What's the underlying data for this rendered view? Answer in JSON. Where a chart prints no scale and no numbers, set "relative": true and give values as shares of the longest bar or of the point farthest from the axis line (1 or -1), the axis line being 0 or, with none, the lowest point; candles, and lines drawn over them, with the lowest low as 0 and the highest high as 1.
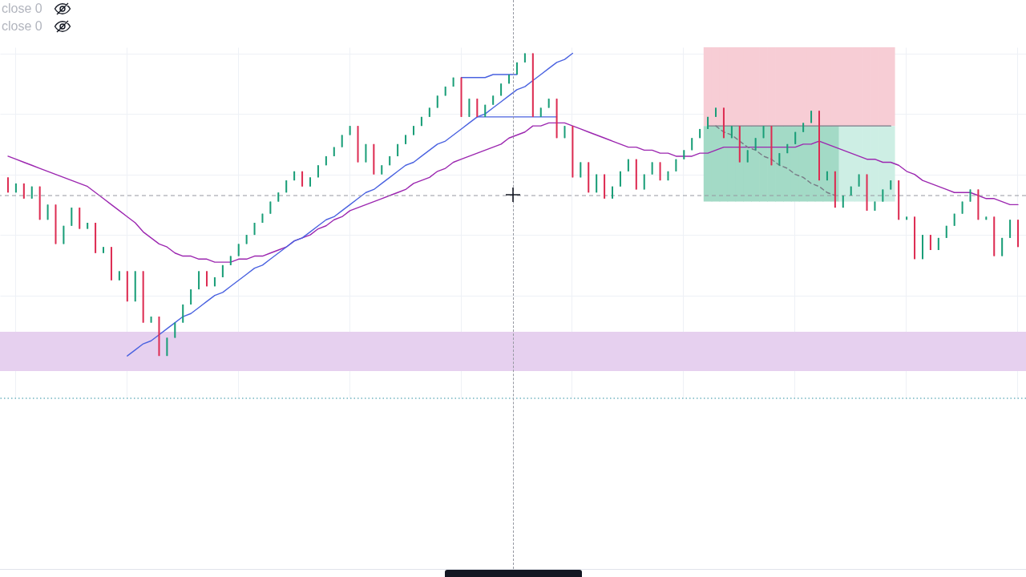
{
  "chart_data": {
    "type": "candlestick",
    "relative": true,
    "grid": true,
    "tick_labels": false,
    "annotations": [
      "close 0",
      "close 0"
    ],
    "categories": [
      null,
      null,
      null,
      null,
      null,
      null,
      null,
      null,
      null,
      null,
      null,
      null,
      null,
      null,
      null,
      null,
      null,
      null,
      null,
      null,
      null,
      null,
      null,
      null,
      null,
      null,
      null,
      null,
      null,
      null,
      null,
      null,
      null,
      null,
      null,
      null,
      null,
      null,
      null,
      null,
      null,
      null,
      null,
      null,
      null,
      null,
      null,
      null,
      null,
      null,
      null,
      null,
      null,
      null,
      null,
      null,
      null,
      null,
      null,
      null,
      null,
      null,
      null,
      null,
      null,
      null,
      null,
      null,
      null,
      null,
      null,
      null,
      null,
      null,
      null,
      null,
      null,
      null,
      null,
      null,
      null,
      null,
      null,
      null,
      null,
      null,
      null,
      null,
      null,
      null,
      null,
      null,
      null,
      null,
      null,
      null,
      null,
      null,
      null,
      null,
      null,
      null,
      null,
      null,
      null,
      null,
      null,
      null,
      null,
      null,
      null,
      null,
      null,
      null,
      null,
      null,
      null,
      null,
      null,
      null,
      null,
      null,
      null,
      null,
      null,
      null,
      null,
      null
    ],
    "ohlc": [
      [
        0.59,
        0.59,
        0.54,
        0.54
      ],
      [
        0.54,
        0.57,
        0.54,
        0.57
      ],
      [
        0.57,
        0.57,
        0.52,
        0.52
      ],
      [
        0.52,
        0.56,
        0.52,
        0.56
      ],
      [
        0.56,
        0.56,
        0.45,
        0.45
      ],
      [
        0.45,
        0.5,
        0.45,
        0.5
      ],
      [
        0.5,
        0.5,
        0.37,
        0.37
      ],
      [
        0.37,
        0.43,
        0.37,
        0.43
      ],
      [
        0.43,
        0.49,
        0.43,
        0.49
      ],
      [
        0.49,
        0.49,
        0.42,
        0.42
      ],
      [
        0.42,
        0.44,
        0.42,
        0.44
      ],
      [
        0.44,
        0.44,
        0.34,
        0.34
      ],
      [
        0.34,
        0.36,
        0.34,
        0.36
      ],
      [
        0.36,
        0.36,
        0.25,
        0.25
      ],
      [
        0.25,
        0.28,
        0.25,
        0.28
      ],
      [
        0.28,
        0.28,
        0.18,
        0.18
      ],
      [
        0.18,
        0.28,
        0.18,
        0.28
      ],
      [
        0.28,
        0.28,
        0.11,
        0.11
      ],
      [
        0.11,
        0.13,
        0.11,
        0.13
      ],
      [
        0.13,
        0.13,
        0,
        0
      ],
      [
        0,
        0.06,
        0,
        0.06
      ],
      [
        0.06,
        0.11,
        0.06,
        0.11
      ],
      [
        0.11,
        0.17,
        0.11,
        0.17
      ],
      [
        0.17,
        0.22,
        0.17,
        0.22
      ],
      [
        0.22,
        0.28,
        0.22,
        0.28
      ],
      [
        0.28,
        0.28,
        0.23,
        0.23
      ],
      [
        0.23,
        0.26,
        0.23,
        0.26
      ],
      [
        0.26,
        0.3,
        0.26,
        0.3
      ],
      [
        0.3,
        0.33,
        0.3,
        0.33
      ],
      [
        0.33,
        0.37,
        0.33,
        0.37
      ],
      [
        0.37,
        0.4,
        0.37,
        0.4
      ],
      [
        0.4,
        0.44,
        0.4,
        0.44
      ],
      [
        0.44,
        0.47,
        0.44,
        0.47
      ],
      [
        0.47,
        0.51,
        0.47,
        0.51
      ],
      [
        0.51,
        0.54,
        0.51,
        0.54
      ],
      [
        0.54,
        0.58,
        0.54,
        0.58
      ],
      [
        0.58,
        0.61,
        0.58,
        0.61
      ],
      [
        0.61,
        0.61,
        0.56,
        0.56
      ],
      [
        0.56,
        0.59,
        0.56,
        0.59
      ],
      [
        0.59,
        0.63,
        0.59,
        0.63
      ],
      [
        0.63,
        0.66,
        0.63,
        0.66
      ],
      [
        0.66,
        0.69,
        0.66,
        0.69
      ],
      [
        0.69,
        0.73,
        0.69,
        0.73
      ],
      [
        0.73,
        0.76,
        0.73,
        0.76
      ],
      [
        0.76,
        0.76,
        0.64,
        0.64
      ],
      [
        0.64,
        0.7,
        0.64,
        0.7
      ],
      [
        0.7,
        0.7,
        0.6,
        0.6
      ],
      [
        0.6,
        0.63,
        0.6,
        0.63
      ],
      [
        0.63,
        0.66,
        0.63,
        0.66
      ],
      [
        0.66,
        0.7,
        0.66,
        0.7
      ],
      [
        0.7,
        0.73,
        0.7,
        0.73
      ],
      [
        0.73,
        0.76,
        0.73,
        0.76
      ],
      [
        0.76,
        0.79,
        0.76,
        0.79
      ],
      [
        0.79,
        0.82,
        0.79,
        0.82
      ],
      [
        0.82,
        0.86,
        0.82,
        0.86
      ],
      [
        0.86,
        0.89,
        0.86,
        0.89
      ],
      [
        0.89,
        0.92,
        0.89,
        0.92
      ],
      [
        0.92,
        0.92,
        0.79,
        0.79
      ],
      [
        0.79,
        0.85,
        0.79,
        0.85
      ],
      [
        0.85,
        0.85,
        0.79,
        0.79
      ],
      [
        0.79,
        0.83,
        0.79,
        0.83
      ],
      [
        0.83,
        0.86,
        0.83,
        0.86
      ],
      [
        0.86,
        0.9,
        0.86,
        0.9
      ],
      [
        0.9,
        0.93,
        0.9,
        0.93
      ],
      [
        0.93,
        0.97,
        0.93,
        0.97
      ],
      [
        0.97,
        1,
        0.97,
        1
      ],
      [
        1,
        1,
        0.79,
        0.79
      ],
      [
        0.79,
        0.82,
        0.79,
        0.82
      ],
      [
        0.82,
        0.85,
        0.82,
        0.85
      ],
      [
        0.85,
        0.85,
        0.72,
        0.72
      ],
      [
        0.72,
        0.76,
        0.72,
        0.76
      ],
      [
        0.76,
        0.76,
        0.59,
        0.59
      ],
      [
        0.59,
        0.64,
        0.59,
        0.64
      ],
      [
        0.64,
        0.64,
        0.54,
        0.54
      ],
      [
        0.54,
        0.6,
        0.54,
        0.6
      ],
      [
        0.6,
        0.6,
        0.52,
        0.52
      ],
      [
        0.52,
        0.56,
        0.52,
        0.56
      ],
      [
        0.56,
        0.61,
        0.56,
        0.61
      ],
      [
        0.61,
        0.65,
        0.61,
        0.65
      ],
      [
        0.65,
        0.65,
        0.55,
        0.55
      ],
      [
        0.55,
        0.6,
        0.55,
        0.6
      ],
      [
        0.6,
        0.64,
        0.6,
        0.64
      ],
      [
        0.64,
        0.64,
        0.58,
        0.58
      ],
      [
        0.58,
        0.61,
        0.58,
        0.61
      ],
      [
        0.61,
        0.65,
        0.61,
        0.65
      ],
      [
        0.65,
        0.68,
        0.65,
        0.68
      ],
      [
        0.68,
        0.72,
        0.68,
        0.72
      ],
      [
        0.72,
        0.75,
        0.72,
        0.75
      ],
      [
        0.75,
        0.79,
        0.75,
        0.79
      ],
      [
        0.79,
        0.82,
        0.79,
        0.82
      ],
      [
        0.82,
        0.82,
        0.72,
        0.72
      ],
      [
        0.72,
        0.76,
        0.72,
        0.76
      ],
      [
        0.76,
        0.76,
        0.64,
        0.64
      ],
      [
        0.64,
        0.68,
        0.64,
        0.68
      ],
      [
        0.68,
        0.72,
        0.68,
        0.72
      ],
      [
        0.72,
        0.76,
        0.72,
        0.76
      ],
      [
        0.76,
        0.76,
        0.63,
        0.63
      ],
      [
        0.63,
        0.67,
        0.63,
        0.67
      ],
      [
        0.67,
        0.7,
        0.67,
        0.7
      ],
      [
        0.7,
        0.74,
        0.7,
        0.74
      ],
      [
        0.74,
        0.77,
        0.74,
        0.77
      ],
      [
        0.77,
        0.81,
        0.77,
        0.81
      ],
      [
        0.81,
        0.81,
        0.58,
        0.58
      ],
      [
        0.58,
        0.61,
        0.58,
        0.61
      ],
      [
        0.61,
        0.61,
        0.49,
        0.49
      ],
      [
        0.49,
        0.53,
        0.49,
        0.53
      ],
      [
        0.53,
        0.56,
        0.53,
        0.56
      ],
      [
        0.56,
        0.6,
        0.56,
        0.6
      ],
      [
        0.6,
        0.6,
        0.48,
        0.48
      ],
      [
        0.48,
        0.51,
        0.48,
        0.51
      ],
      [
        0.51,
        0.55,
        0.51,
        0.55
      ],
      [
        0.55,
        0.58,
        0.55,
        0.58
      ],
      [
        0.58,
        0.58,
        0.45,
        0.45
      ],
      [
        0.45,
        0.46,
        0.45,
        0.46
      ],
      [
        0.46,
        0.46,
        0.32,
        0.32
      ],
      [
        0.32,
        0.4,
        0.32,
        0.4
      ],
      [
        0.4,
        0.4,
        0.35,
        0.35
      ],
      [
        0.35,
        0.39,
        0.35,
        0.39
      ],
      [
        0.39,
        0.43,
        0.39,
        0.43
      ],
      [
        0.43,
        0.47,
        0.43,
        0.47
      ],
      [
        0.47,
        0.51,
        0.47,
        0.51
      ],
      [
        0.51,
        0.55,
        0.51,
        0.55
      ],
      [
        0.55,
        0.55,
        0.45,
        0.45
      ],
      [
        0.45,
        0.46,
        0.45,
        0.46
      ],
      [
        0.46,
        0.46,
        0.33,
        0.33
      ],
      [
        0.33,
        0.39,
        0.33,
        0.39
      ],
      [
        0.39,
        0.45,
        0.39,
        0.45
      ],
      [
        0.45,
        0.45,
        0.36,
        0.36
      ]
    ],
    "colors": [
      "#dd2c52",
      "#1a9e78",
      "#dd2c52",
      "#1a9e78",
      "#dd2c52",
      "#1a9e78",
      "#dd2c52",
      "#1a9e78",
      "#1a9e78",
      "#dd2c52",
      "#1a9e78",
      "#dd2c52",
      "#1a9e78",
      "#dd2c52",
      "#1a9e78",
      "#dd2c52",
      "#1a9e78",
      "#dd2c52",
      "#1a9e78",
      "#dd2c52",
      "#1a9e78",
      "#1a9e78",
      "#1a9e78",
      "#1a9e78",
      "#1a9e78",
      "#dd2c52",
      "#1a9e78",
      "#1a9e78",
      "#1a9e78",
      "#1a9e78",
      "#1a9e78",
      "#1a9e78",
      "#1a9e78",
      "#1a9e78",
      "#1a9e78",
      "#1a9e78",
      "#1a9e78",
      "#dd2c52",
      "#1a9e78",
      "#1a9e78",
      "#1a9e78",
      "#1a9e78",
      "#1a9e78",
      "#1a9e78",
      "#dd2c52",
      "#1a9e78",
      "#dd2c52",
      "#1a9e78",
      "#1a9e78",
      "#1a9e78",
      "#1a9e78",
      "#1a9e78",
      "#1a9e78",
      "#1a9e78",
      "#1a9e78",
      "#1a9e78",
      "#1a9e78",
      "#dd2c52",
      "#1a9e78",
      "#dd2c52",
      "#1a9e78",
      "#1a9e78",
      "#1a9e78",
      "#1a9e78",
      "#1a9e78",
      "#1a9e78",
      "#dd2c52",
      "#1a9e78",
      "#1a9e78",
      "#dd2c52",
      "#1a9e78",
      "#dd2c52",
      "#1a9e78",
      "#dd2c52",
      "#1a9e78",
      "#dd2c52",
      "#1a9e78",
      "#1a9e78",
      "#1a9e78",
      "#dd2c52",
      "#1a9e78",
      "#1a9e78",
      "#dd2c52",
      "#1a9e78",
      "#1a9e78",
      "#1a9e78",
      "#1a9e78",
      "#1a9e78",
      "#1a9e78",
      "#1a9e78",
      "#dd2c52",
      "#1a9e78",
      "#dd2c52",
      "#1a9e78",
      "#1a9e78",
      "#1a9e78",
      "#dd2c52",
      "#1a9e78",
      "#1a9e78",
      "#1a9e78",
      "#1a9e78",
      "#1a9e78",
      "#dd2c52",
      "#1a9e78",
      "#dd2c52",
      "#1a9e78",
      "#1a9e78",
      "#1a9e78",
      "#dd2c52",
      "#1a9e78",
      "#1a9e78",
      "#1a9e78",
      "#dd2c52",
      "#1a9e78",
      "#dd2c52",
      "#1a9e78",
      "#dd2c52",
      "#1a9e78",
      "#1a9e78",
      "#1a9e78",
      "#1a9e78",
      "#1a9e78",
      "#dd2c52",
      "#1a9e78",
      "#dd2c52",
      "#1a9e78",
      "#1a9e78",
      "#dd2c52"
    ],
    "series": [
      {
        "type": "line",
        "color": "#9c27b0",
        "values": [
          0.66,
          0.65,
          0.64,
          0.63,
          0.62,
          0.61,
          0.6,
          0.59,
          0.58,
          0.57,
          0.56,
          0.54,
          0.52,
          0.5,
          0.48,
          0.46,
          0.44,
          0.41,
          0.39,
          0.37,
          0.36,
          0.34,
          0.33,
          0.33,
          0.32,
          0.32,
          0.31,
          0.31,
          0.31,
          0.32,
          0.32,
          0.33,
          0.33,
          0.34,
          0.35,
          0.36,
          0.38,
          0.39,
          0.4,
          0.42,
          0.43,
          0.45,
          0.46,
          0.48,
          0.49,
          0.5,
          0.51,
          0.52,
          0.53,
          0.54,
          0.55,
          0.57,
          0.58,
          0.59,
          0.61,
          0.62,
          0.64,
          0.65,
          0.66,
          0.67,
          0.68,
          0.69,
          0.7,
          0.72,
          0.73,
          0.74,
          0.76,
          0.76,
          0.77,
          0.77,
          0.77,
          0.76,
          0.75,
          0.74,
          0.73,
          0.72,
          0.71,
          0.7,
          0.69,
          0.69,
          0.68,
          0.68,
          0.67,
          0.67,
          0.66,
          0.66,
          0.66,
          0.67,
          0.67,
          0.68,
          0.69,
          0.69,
          0.69,
          0.69,
          0.69,
          0.69,
          0.69,
          0.69,
          0.69,
          0.69,
          0.7,
          0.7,
          0.71,
          0.7,
          0.69,
          0.68,
          0.67,
          0.66,
          0.65,
          0.65,
          0.64,
          0.64,
          0.63,
          0.61,
          0.6,
          0.58,
          0.57,
          0.56,
          0.55,
          0.54,
          0.54,
          0.54,
          0.53,
          0.52,
          0.52,
          0.51,
          0.5,
          0.5
        ]
      },
      {
        "type": "line",
        "color": "#4a62e0",
        "values": [
          null,
          null,
          null,
          null,
          null,
          null,
          null,
          null,
          null,
          null,
          null,
          null,
          null,
          null,
          null,
          0,
          0.02,
          0.04,
          0.05,
          0.07,
          0.09,
          0.11,
          0.13,
          0.14,
          0.16,
          0.18,
          0.2,
          0.21,
          0.23,
          0.25,
          0.27,
          0.29,
          0.3,
          0.32,
          0.34,
          0.36,
          0.38,
          0.39,
          0.41,
          0.43,
          0.45,
          0.46,
          0.48,
          0.5,
          0.52,
          0.54,
          0.55,
          0.57,
          0.59,
          0.61,
          0.63,
          0.64,
          0.66,
          0.68,
          0.7,
          0.71,
          0.73,
          0.75,
          0.77,
          0.79,
          0.8,
          0.82,
          0.84,
          0.86,
          0.88,
          0.89,
          0.91,
          0.93,
          0.95,
          0.97,
          0.98,
          1,
          null,
          null,
          null,
          null,
          null,
          null,
          null,
          null,
          null,
          null,
          null,
          null,
          null,
          null,
          null,
          null,
          null,
          null,
          null,
          null,
          null,
          null,
          null,
          null,
          null,
          null,
          null,
          null,
          null,
          null,
          null,
          null,
          null,
          null,
          null,
          null,
          null,
          null,
          null,
          null,
          null,
          null,
          null,
          null,
          null,
          null,
          null,
          null,
          null,
          null,
          null,
          null,
          null,
          null,
          null,
          null
        ]
      },
      {
        "type": "line",
        "color": "#4a62e0",
        "values": [
          null,
          null,
          null,
          null,
          null,
          null,
          null,
          null,
          null,
          null,
          null,
          null,
          null,
          null,
          null,
          null,
          null,
          null,
          null,
          null,
          null,
          null,
          null,
          null,
          null,
          null,
          null,
          null,
          null,
          null,
          null,
          null,
          null,
          null,
          null,
          null,
          null,
          null,
          null,
          null,
          null,
          null,
          null,
          null,
          null,
          null,
          null,
          null,
          null,
          null,
          null,
          null,
          null,
          null,
          null,
          null,
          null,
          0.92,
          0.92,
          0.92,
          0.92,
          0.93,
          0.93,
          0.93,
          0.93,
          null,
          null,
          null,
          null,
          null,
          null,
          null,
          null,
          null,
          null,
          null,
          null,
          null,
          null,
          null,
          null,
          null,
          null,
          null,
          null,
          null,
          null,
          null,
          null,
          null,
          null,
          null,
          null,
          null,
          null,
          null,
          null,
          null,
          null,
          null,
          null,
          null,
          null,
          null,
          null,
          null,
          null,
          null,
          null,
          null,
          null,
          null,
          null,
          null,
          null,
          null,
          null,
          null,
          null,
          null,
          null,
          null,
          null,
          null,
          null,
          null,
          null,
          null
        ]
      },
      {
        "type": "line",
        "color": "#4a62e0",
        "values": [
          null,
          null,
          null,
          null,
          null,
          null,
          null,
          null,
          null,
          null,
          null,
          null,
          null,
          null,
          null,
          null,
          null,
          null,
          null,
          null,
          null,
          null,
          null,
          null,
          null,
          null,
          null,
          null,
          null,
          null,
          null,
          null,
          null,
          null,
          null,
          null,
          null,
          null,
          null,
          null,
          null,
          null,
          null,
          null,
          null,
          null,
          null,
          null,
          null,
          null,
          null,
          null,
          null,
          null,
          null,
          null,
          null,
          null,
          null,
          0.79,
          0.79,
          0.79,
          0.79,
          0.79,
          0.79,
          0.79,
          0.79,
          0.79,
          0.79,
          0.79,
          null,
          null,
          null,
          null,
          null,
          null,
          null,
          null,
          null,
          null,
          null,
          null,
          null,
          null,
          null,
          null,
          null,
          null,
          null,
          null,
          null,
          null,
          null,
          null,
          null,
          null,
          null,
          null,
          null,
          null,
          null,
          null,
          null,
          null,
          null,
          null,
          null,
          null,
          null,
          null,
          null,
          null,
          null,
          null,
          null,
          null,
          null,
          null,
          null,
          null,
          null,
          null,
          null,
          null,
          null,
          null,
          null,
          null
        ]
      },
      {
        "type": "bar",
        "color": "#f7cdd5",
        "values": [
          null,
          null,
          null,
          null,
          null,
          null,
          null,
          null,
          null,
          null,
          null,
          null,
          null,
          null,
          null,
          null,
          null,
          null,
          null,
          null,
          null,
          null,
          null,
          null,
          null,
          null,
          null,
          null,
          null,
          null,
          null,
          null,
          null,
          null,
          null,
          null,
          null,
          null,
          null,
          null,
          null,
          null,
          null,
          null,
          null,
          null,
          null,
          null,
          null,
          null,
          null,
          null,
          null,
          null,
          null,
          null,
          null,
          null,
          null,
          null,
          null,
          null,
          null,
          null,
          null,
          null,
          null,
          null,
          null,
          null,
          null,
          null,
          null,
          null,
          null,
          null,
          null,
          null,
          null,
          null,
          null,
          null,
          null,
          null,
          null,
          null,
          null,
          null,
          0.26,
          0.26,
          0.26,
          0.26,
          0.26,
          0.26,
          0.26,
          0.26,
          0.26,
          0.26,
          0.26,
          0.26,
          0.26,
          0.26,
          0.26,
          0.26,
          0.26,
          0.26,
          0.26,
          0.26,
          0.26,
          0.26,
          0.26,
          0.26,
          null,
          null,
          null,
          null,
          null,
          null,
          null,
          null,
          null,
          null,
          null,
          null,
          null,
          null,
          null,
          null
        ],
        "base": [
          null,
          null,
          null,
          null,
          null,
          null,
          null,
          null,
          null,
          null,
          null,
          null,
          null,
          null,
          null,
          null,
          null,
          null,
          null,
          null,
          null,
          null,
          null,
          null,
          null,
          null,
          null,
          null,
          null,
          null,
          null,
          null,
          null,
          null,
          null,
          null,
          null,
          null,
          null,
          null,
          null,
          null,
          null,
          null,
          null,
          null,
          null,
          null,
          null,
          null,
          null,
          null,
          null,
          null,
          null,
          null,
          null,
          null,
          null,
          null,
          null,
          null,
          null,
          null,
          null,
          null,
          null,
          null,
          null,
          null,
          null,
          null,
          null,
          null,
          null,
          null,
          null,
          null,
          null,
          null,
          null,
          null,
          null,
          null,
          null,
          null,
          null,
          null,
          0.76,
          0.76,
          0.76,
          0.76,
          0.76,
          0.76,
          0.76,
          0.76,
          0.76,
          0.76,
          0.76,
          0.76,
          0.76,
          0.76,
          0.76,
          0.76,
          0.76,
          0.76,
          0.76,
          0.76,
          0.76,
          0.76,
          0.76,
          0.76,
          null,
          null,
          null,
          null,
          null,
          null,
          null,
          null,
          null,
          null,
          null,
          null,
          null,
          null,
          null,
          null
        ]
      },
      {
        "type": "bar",
        "color": "#a3dac6",
        "values": [
          null,
          null,
          null,
          null,
          null,
          null,
          null,
          null,
          null,
          null,
          null,
          null,
          null,
          null,
          null,
          null,
          null,
          null,
          null,
          null,
          null,
          null,
          null,
          null,
          null,
          null,
          null,
          null,
          null,
          null,
          null,
          null,
          null,
          null,
          null,
          null,
          null,
          null,
          null,
          null,
          null,
          null,
          null,
          null,
          null,
          null,
          null,
          null,
          null,
          null,
          null,
          null,
          null,
          null,
          null,
          null,
          null,
          null,
          null,
          null,
          null,
          null,
          null,
          null,
          null,
          null,
          null,
          null,
          null,
          null,
          null,
          null,
          null,
          null,
          null,
          null,
          null,
          null,
          null,
          null,
          null,
          null,
          null,
          null,
          null,
          null,
          null,
          null,
          0.25,
          0.25,
          0.25,
          0.25,
          0.25,
          0.25,
          0.25,
          0.25,
          0.25,
          0.25,
          0.25,
          0.25,
          0.25,
          0.25,
          0.25,
          0.25,
          0.25,
          null,
          null,
          null,
          null,
          null,
          null,
          null,
          null,
          null,
          null,
          null,
          null,
          null,
          null,
          null,
          null,
          null,
          null,
          null,
          null,
          null,
          null,
          null
        ],
        "base": [
          null,
          null,
          null,
          null,
          null,
          null,
          null,
          null,
          null,
          null,
          null,
          null,
          null,
          null,
          null,
          null,
          null,
          null,
          null,
          null,
          null,
          null,
          null,
          null,
          null,
          null,
          null,
          null,
          null,
          null,
          null,
          null,
          null,
          null,
          null,
          null,
          null,
          null,
          null,
          null,
          null,
          null,
          null,
          null,
          null,
          null,
          null,
          null,
          null,
          null,
          null,
          null,
          null,
          null,
          null,
          null,
          null,
          null,
          null,
          null,
          null,
          null,
          null,
          null,
          null,
          null,
          null,
          null,
          null,
          null,
          null,
          null,
          null,
          null,
          null,
          null,
          null,
          null,
          null,
          null,
          null,
          null,
          null,
          null,
          null,
          null,
          null,
          null,
          0.51,
          0.51,
          0.51,
          0.51,
          0.51,
          0.51,
          0.51,
          0.51,
          0.51,
          0.51,
          0.51,
          0.51,
          0.51,
          0.51,
          0.51,
          0.51,
          0.51,
          null,
          null,
          null,
          null,
          null,
          null,
          null,
          null,
          null,
          null,
          null,
          null,
          null,
          null,
          null,
          null,
          null,
          null,
          null,
          null,
          null,
          null,
          null
        ]
      },
      {
        "type": "bar",
        "color": "#cdeee4",
        "values": [
          null,
          null,
          null,
          null,
          null,
          null,
          null,
          null,
          null,
          null,
          null,
          null,
          null,
          null,
          null,
          null,
          null,
          null,
          null,
          null,
          null,
          null,
          null,
          null,
          null,
          null,
          null,
          null,
          null,
          null,
          null,
          null,
          null,
          null,
          null,
          null,
          null,
          null,
          null,
          null,
          null,
          null,
          null,
          null,
          null,
          null,
          null,
          null,
          null,
          null,
          null,
          null,
          null,
          null,
          null,
          null,
          null,
          null,
          null,
          null,
          null,
          null,
          null,
          null,
          null,
          null,
          null,
          null,
          null,
          null,
          null,
          null,
          null,
          null,
          null,
          null,
          null,
          null,
          null,
          null,
          null,
          null,
          null,
          null,
          null,
          null,
          null,
          null,
          null,
          null,
          null,
          null,
          null,
          null,
          null,
          null,
          null,
          null,
          null,
          null,
          null,
          null,
          null,
          null,
          null,
          0.25,
          0.25,
          0.25,
          0.25,
          0.25,
          0.25,
          0.25,
          null,
          null,
          null,
          null,
          null,
          null,
          null,
          null,
          null,
          null,
          null,
          null,
          null,
          null,
          null,
          null
        ],
        "base": [
          null,
          null,
          null,
          null,
          null,
          null,
          null,
          null,
          null,
          null,
          null,
          null,
          null,
          null,
          null,
          null,
          null,
          null,
          null,
          null,
          null,
          null,
          null,
          null,
          null,
          null,
          null,
          null,
          null,
          null,
          null,
          null,
          null,
          null,
          null,
          null,
          null,
          null,
          null,
          null,
          null,
          null,
          null,
          null,
          null,
          null,
          null,
          null,
          null,
          null,
          null,
          null,
          null,
          null,
          null,
          null,
          null,
          null,
          null,
          null,
          null,
          null,
          null,
          null,
          null,
          null,
          null,
          null,
          null,
          null,
          null,
          null,
          null,
          null,
          null,
          null,
          null,
          null,
          null,
          null,
          null,
          null,
          null,
          null,
          null,
          null,
          null,
          null,
          null,
          null,
          null,
          null,
          null,
          null,
          null,
          null,
          null,
          null,
          null,
          null,
          null,
          null,
          null,
          null,
          null,
          0.51,
          0.51,
          0.51,
          0.51,
          0.51,
          0.51,
          0.51,
          null,
          null,
          null,
          null,
          null,
          null,
          null,
          null,
          null,
          null,
          null,
          null,
          null,
          null,
          null,
          null
        ]
      },
      {
        "type": "line",
        "color": "#787b86",
        "values": [
          null,
          null,
          null,
          null,
          null,
          null,
          null,
          null,
          null,
          null,
          null,
          null,
          null,
          null,
          null,
          null,
          null,
          null,
          null,
          null,
          null,
          null,
          null,
          null,
          null,
          null,
          null,
          null,
          null,
          null,
          null,
          null,
          null,
          null,
          null,
          null,
          null,
          null,
          null,
          null,
          null,
          null,
          null,
          null,
          null,
          null,
          null,
          null,
          null,
          null,
          null,
          null,
          null,
          null,
          null,
          null,
          null,
          null,
          null,
          null,
          null,
          null,
          null,
          null,
          null,
          null,
          null,
          null,
          null,
          null,
          null,
          null,
          null,
          null,
          null,
          null,
          null,
          null,
          null,
          null,
          null,
          null,
          null,
          null,
          null,
          null,
          null,
          null,
          0.76,
          0.76,
          0.76,
          0.76,
          0.76,
          0.76,
          0.76,
          0.76,
          0.76,
          0.76,
          0.76,
          0.76,
          0.76,
          0.76,
          0.76,
          0.76,
          0.76,
          0.76,
          0.76,
          0.76,
          0.76,
          0.76,
          0.76,
          0.76,
          null,
          null,
          null,
          null,
          null,
          null,
          null,
          null,
          null,
          null,
          null,
          null,
          null,
          null,
          null,
          null
        ]
      },
      {
        "type": "line",
        "color": "#787b86",
        "line_style": "dashed",
        "values": [
          null,
          null,
          null,
          null,
          null,
          null,
          null,
          null,
          null,
          null,
          null,
          null,
          null,
          null,
          null,
          null,
          null,
          null,
          null,
          null,
          null,
          null,
          null,
          null,
          null,
          null,
          null,
          null,
          null,
          null,
          null,
          null,
          null,
          null,
          null,
          null,
          null,
          null,
          null,
          null,
          null,
          null,
          null,
          null,
          null,
          null,
          null,
          null,
          null,
          null,
          null,
          null,
          null,
          null,
          null,
          null,
          null,
          null,
          null,
          null,
          null,
          null,
          null,
          null,
          null,
          null,
          null,
          null,
          null,
          null,
          null,
          null,
          null,
          null,
          null,
          null,
          null,
          null,
          null,
          null,
          null,
          null,
          null,
          null,
          null,
          null,
          null,
          null,
          null,
          0.76,
          0.74,
          0.73,
          0.71,
          0.69,
          0.68,
          0.66,
          0.65,
          0.63,
          0.62,
          0.6,
          0.59,
          0.57,
          0.56,
          0.54,
          0.53,
          null,
          null,
          null,
          null,
          null,
          null,
          null,
          null,
          null,
          null,
          null,
          null,
          null,
          null,
          null,
          null,
          null,
          null,
          null,
          null,
          null,
          null,
          null
        ]
      }
    ],
    "ref_lines": [
      {
        "axis": "y",
        "value": 0.53,
        "color": "#9598a1",
        "line_style": "dashed"
      },
      {
        "axis": "y",
        "value": -0.14,
        "color": "#2a8fa0",
        "line_style": "dotted"
      }
    ],
    "bands": [
      {
        "axis": "y",
        "from": -0.05,
        "to": 0.08,
        "color": "#e6d0ef"
      }
    ]
  }
}
